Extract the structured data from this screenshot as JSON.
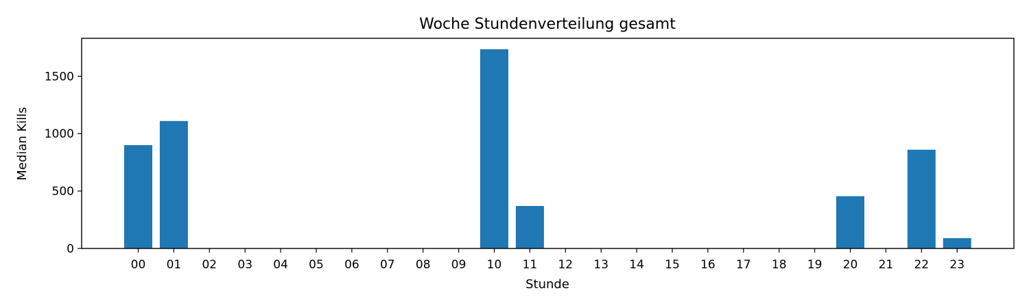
{
  "chart_data": {
    "type": "bar",
    "title": "Woche Stundenverteilung gesamt",
    "xlabel": "Stunde",
    "ylabel": "Median Kills",
    "categories": [
      "00",
      "01",
      "02",
      "03",
      "04",
      "05",
      "06",
      "07",
      "08",
      "09",
      "10",
      "11",
      "12",
      "13",
      "14",
      "15",
      "16",
      "17",
      "18",
      "19",
      "20",
      "21",
      "22",
      "23"
    ],
    "values": [
      900,
      1110,
      0,
      0,
      0,
      0,
      0,
      0,
      0,
      0,
      1735,
      370,
      0,
      0,
      0,
      0,
      0,
      0,
      0,
      0,
      455,
      0,
      860,
      90
    ],
    "ylim": [
      0,
      1830
    ],
    "yticks": [
      0,
      500,
      1000,
      1500
    ],
    "bar_color": "#1f77b4",
    "grid": false
  }
}
